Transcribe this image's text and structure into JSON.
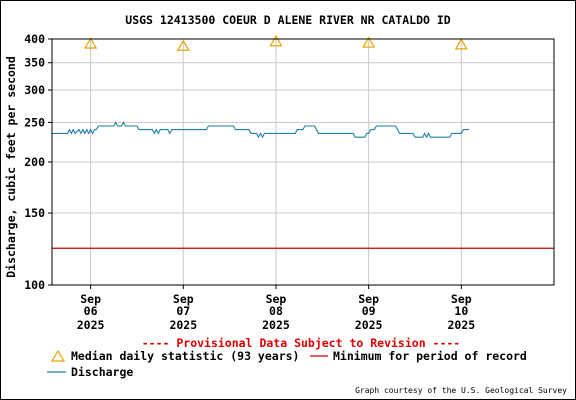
{
  "chart_data": {
    "type": "line",
    "title": "USGS 12413500 COEUR D ALENE RIVER NR CATALDO ID",
    "ylabel": "Discharge, cubic feet per second",
    "xlabel": "",
    "yscale": "log",
    "ylim": [
      100,
      400
    ],
    "xlim": [
      "2025-09-05 14:00",
      "2025-09-11 00:00"
    ],
    "grid": true,
    "y_ticks": [
      {
        "value": 100,
        "label": "100"
      },
      {
        "value": 150,
        "label": "150"
      },
      {
        "value": 200,
        "label": "200"
      },
      {
        "value": 250,
        "label": "250"
      },
      {
        "value": 300,
        "label": "300"
      },
      {
        "value": 350,
        "label": "350"
      },
      {
        "value": 400,
        "label": "400"
      }
    ],
    "x_ticks": [
      {
        "value": "2025-09-06 00:00",
        "month": "Sep",
        "day": "06",
        "year": "2025"
      },
      {
        "value": "2025-09-07 00:00",
        "month": "Sep",
        "day": "07",
        "year": "2025"
      },
      {
        "value": "2025-09-08 00:00",
        "month": "Sep",
        "day": "08",
        "year": "2025"
      },
      {
        "value": "2025-09-09 00:00",
        "month": "Sep",
        "day": "09",
        "year": "2025"
      },
      {
        "value": "2025-09-10 00:00",
        "month": "Sep",
        "day": "10",
        "year": "2025"
      }
    ],
    "series": [
      {
        "name": "Discharge",
        "color": "#1f7fa8",
        "points": [
          [
            "2025-09-05 14:00",
            235
          ],
          [
            "2025-09-05 18:00",
            235
          ],
          [
            "2025-09-05 18:30",
            240
          ],
          [
            "2025-09-05 19:00",
            235
          ],
          [
            "2025-09-05 19:30",
            240
          ],
          [
            "2025-09-05 20:00",
            235
          ],
          [
            "2025-09-05 21:00",
            240
          ],
          [
            "2025-09-05 21:30",
            235
          ],
          [
            "2025-09-05 22:00",
            240
          ],
          [
            "2025-09-05 22:30",
            235
          ],
          [
            "2025-09-05 23:00",
            240
          ],
          [
            "2025-09-05 23:30",
            235
          ],
          [
            "2025-09-06 00:00",
            240
          ],
          [
            "2025-09-06 00:30",
            235
          ],
          [
            "2025-09-06 01:00",
            240
          ],
          [
            "2025-09-06 01:30",
            240
          ],
          [
            "2025-09-06 02:00",
            245
          ],
          [
            "2025-09-06 06:00",
            245
          ],
          [
            "2025-09-06 06:30",
            250
          ],
          [
            "2025-09-06 07:00",
            245
          ],
          [
            "2025-09-06 08:00",
            245
          ],
          [
            "2025-09-06 08:30",
            250
          ],
          [
            "2025-09-06 09:00",
            245
          ],
          [
            "2025-09-06 12:00",
            245
          ],
          [
            "2025-09-06 12:30",
            240
          ],
          [
            "2025-09-06 16:00",
            240
          ],
          [
            "2025-09-06 16:30",
            235
          ],
          [
            "2025-09-06 17:00",
            240
          ],
          [
            "2025-09-06 17:30",
            235
          ],
          [
            "2025-09-06 18:00",
            240
          ],
          [
            "2025-09-06 20:00",
            240
          ],
          [
            "2025-09-06 20:30",
            235
          ],
          [
            "2025-09-06 21:00",
            240
          ],
          [
            "2025-09-07 00:00",
            240
          ],
          [
            "2025-09-07 06:00",
            240
          ],
          [
            "2025-09-07 06:30",
            245
          ],
          [
            "2025-09-07 13:00",
            245
          ],
          [
            "2025-09-07 13:30",
            240
          ],
          [
            "2025-09-07 17:00",
            240
          ],
          [
            "2025-09-07 17:30",
            235
          ],
          [
            "2025-09-07 19:00",
            235
          ],
          [
            "2025-09-07 19:30",
            230
          ],
          [
            "2025-09-07 20:00",
            235
          ],
          [
            "2025-09-07 20:30",
            230
          ],
          [
            "2025-09-07 21:00",
            235
          ],
          [
            "2025-09-08 00:00",
            235
          ],
          [
            "2025-09-08 05:00",
            235
          ],
          [
            "2025-09-08 05:30",
            240
          ],
          [
            "2025-09-08 07:00",
            240
          ],
          [
            "2025-09-08 07:30",
            245
          ],
          [
            "2025-09-08 10:00",
            245
          ],
          [
            "2025-09-08 10:30",
            240
          ],
          [
            "2025-09-08 11:00",
            235
          ],
          [
            "2025-09-08 16:00",
            235
          ],
          [
            "2025-09-08 20:00",
            235
          ],
          [
            "2025-09-08 20:30",
            230
          ],
          [
            "2025-09-08 23:00",
            230
          ],
          [
            "2025-09-08 23:30",
            235
          ],
          [
            "2025-09-09 00:00",
            235
          ],
          [
            "2025-09-09 00:30",
            240
          ],
          [
            "2025-09-09 01:30",
            240
          ],
          [
            "2025-09-09 02:00",
            245
          ],
          [
            "2025-09-09 07:00",
            245
          ],
          [
            "2025-09-09 07:30",
            240
          ],
          [
            "2025-09-09 08:00",
            235
          ],
          [
            "2025-09-09 11:30",
            235
          ],
          [
            "2025-09-09 12:00",
            230
          ],
          [
            "2025-09-09 14:00",
            230
          ],
          [
            "2025-09-09 14:30",
            235
          ],
          [
            "2025-09-09 15:00",
            230
          ],
          [
            "2025-09-09 15:30",
            235
          ],
          [
            "2025-09-09 16:00",
            230
          ],
          [
            "2025-09-09 19:00",
            230
          ],
          [
            "2025-09-09 21:00",
            230
          ],
          [
            "2025-09-09 21:30",
            235
          ],
          [
            "2025-09-10 00:00",
            235
          ],
          [
            "2025-09-10 00:30",
            240
          ],
          [
            "2025-09-10 02:00",
            240
          ]
        ]
      },
      {
        "name": "Median daily statistic (93 years)",
        "color": "#e8a200",
        "marker": "triangle",
        "points": [
          [
            "2025-09-06 00:00",
            390
          ],
          [
            "2025-09-07 00:00",
            385
          ],
          [
            "2025-09-08 00:00",
            395
          ],
          [
            "2025-09-09 00:00",
            392
          ],
          [
            "2025-09-10 00:00",
            388
          ]
        ]
      },
      {
        "name": "Minimum for period of record",
        "color": "#cc0000",
        "points": [
          [
            "2025-09-05 14:00",
            123
          ],
          [
            "2025-09-11 00:00",
            123
          ]
        ]
      }
    ],
    "notice": "---- Provisional Data Subject to Revision ----",
    "legend": {
      "placement": "bottom",
      "median": "Median daily statistic (93 years)",
      "minimum": "Minimum for period of record",
      "discharge": "Discharge"
    },
    "credit": "Graph courtesy of the U.S. Geological Survey"
  }
}
